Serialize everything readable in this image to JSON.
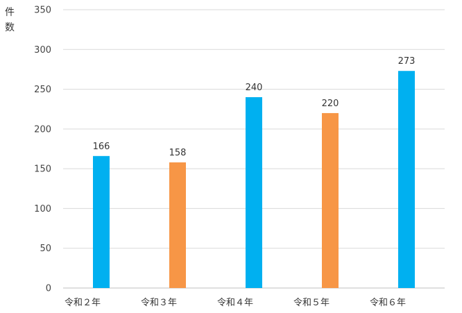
{
  "chart_data": {
    "type": "bar",
    "title": "",
    "ylabel_chars": [
      "件",
      "数"
    ],
    "xlabel": "",
    "categories": [
      "令和２年",
      "令和３年",
      "令和４年",
      "令和５年",
      "令和６年"
    ],
    "values": [
      166,
      158,
      240,
      220,
      273
    ],
    "colors": [
      "#00b0f0",
      "#f79646",
      "#00b0f0",
      "#f79646",
      "#00b0f0"
    ],
    "ylim": [
      0,
      350
    ],
    "yticks": [
      0,
      50,
      100,
      150,
      200,
      250,
      300,
      350
    ],
    "grid": true,
    "legend": "none",
    "data_labels": true
  }
}
